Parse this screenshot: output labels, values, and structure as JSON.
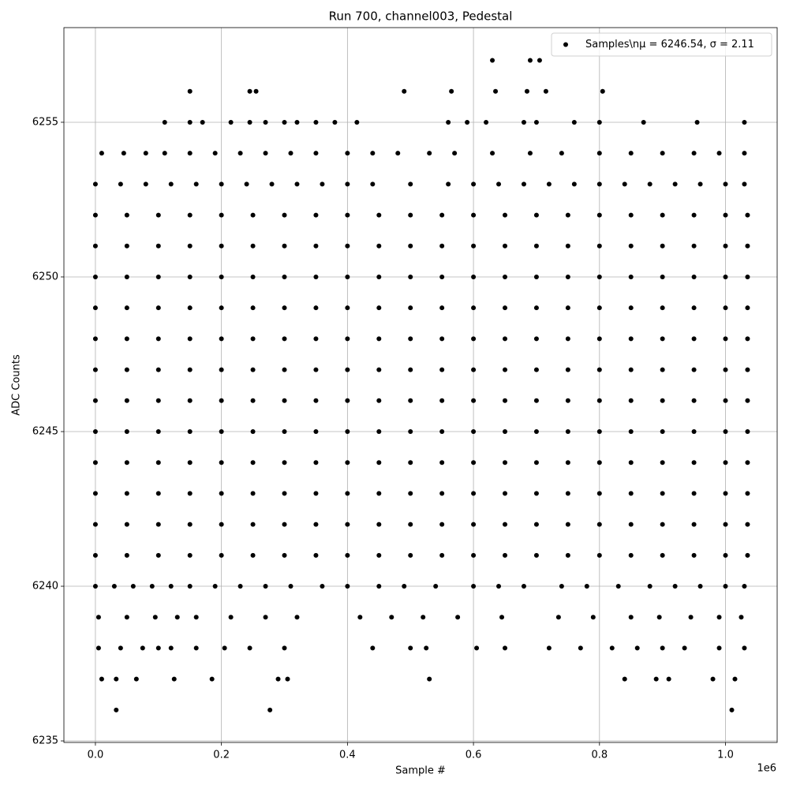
{
  "chart_data": {
    "type": "scatter",
    "title": "Run 700, channel003, Pedestal",
    "x_label": "Sample #",
    "y_label": "ADC Counts",
    "x_offset_label": "1e6",
    "legend_position": "upper right",
    "grid": true,
    "xlim": [
      -50000,
      1082000
    ],
    "ylim": [
      6234.95,
      6258.06
    ],
    "xticks": [
      {
        "value": 0,
        "label": "0.0"
      },
      {
        "value": 200000,
        "label": "0.2"
      },
      {
        "value": 400000,
        "label": "0.4"
      },
      {
        "value": 600000,
        "label": "0.6"
      },
      {
        "value": 800000,
        "label": "0.8"
      },
      {
        "value": 1000000,
        "label": "1.0"
      }
    ],
    "yticks": [
      6235,
      6240,
      6245,
      6250,
      6255
    ],
    "series": [
      {
        "name": "Samples\\nμ = 6246.54, σ = 2.11",
        "color": "#000000",
        "x": [
          0,
          50000,
          100000,
          150000,
          200000,
          250000,
          300000,
          350000,
          400000,
          450000,
          500000,
          550000,
          600000,
          650000,
          700000,
          750000,
          800000,
          850000,
          900000,
          950000,
          1000000,
          1035000,
          0,
          50000,
          100000,
          150000,
          200000,
          250000,
          300000,
          350000,
          400000,
          450000,
          500000,
          550000,
          600000,
          650000,
          700000,
          750000,
          800000,
          850000,
          900000,
          950000,
          1000000,
          1035000,
          0,
          50000,
          100000,
          150000,
          200000,
          250000,
          300000,
          350000,
          400000,
          450000,
          500000,
          550000,
          600000,
          650000,
          700000,
          750000,
          800000,
          850000,
          900000,
          950000,
          1000000,
          1035000,
          0,
          50000,
          100000,
          150000,
          200000,
          250000,
          300000,
          350000,
          400000,
          450000,
          500000,
          550000,
          600000,
          650000,
          700000,
          750000,
          800000,
          850000,
          900000,
          950000,
          1000000,
          1035000,
          0,
          50000,
          100000,
          150000,
          200000,
          250000,
          300000,
          350000,
          400000,
          450000,
          500000,
          550000,
          600000,
          650000,
          700000,
          750000,
          800000,
          850000,
          900000,
          950000,
          1000000,
          1035000,
          0,
          50000,
          100000,
          150000,
          200000,
          250000,
          300000,
          350000,
          400000,
          450000,
          500000,
          550000,
          600000,
          650000,
          700000,
          750000,
          800000,
          850000,
          900000,
          950000,
          1000000,
          1035000,
          0,
          50000,
          100000,
          150000,
          200000,
          250000,
          300000,
          350000,
          400000,
          450000,
          500000,
          550000,
          600000,
          650000,
          700000,
          750000,
          800000,
          850000,
          900000,
          950000,
          1000000,
          1035000,
          0,
          50000,
          100000,
          150000,
          200000,
          250000,
          300000,
          350000,
          400000,
          450000,
          500000,
          550000,
          600000,
          650000,
          700000,
          750000,
          800000,
          850000,
          900000,
          950000,
          1000000,
          1035000,
          0,
          50000,
          100000,
          150000,
          200000,
          250000,
          300000,
          350000,
          400000,
          450000,
          500000,
          550000,
          600000,
          650000,
          700000,
          750000,
          800000,
          850000,
          900000,
          950000,
          1000000,
          1035000,
          0,
          50000,
          100000,
          150000,
          200000,
          250000,
          300000,
          350000,
          400000,
          450000,
          500000,
          550000,
          600000,
          650000,
          700000,
          750000,
          800000,
          850000,
          900000,
          950000,
          1000000,
          1035000,
          0,
          50000,
          100000,
          150000,
          200000,
          250000,
          300000,
          350000,
          400000,
          450000,
          500000,
          550000,
          600000,
          650000,
          700000,
          750000,
          800000,
          850000,
          900000,
          950000,
          1000000,
          1035000,
          0,
          50000,
          100000,
          150000,
          200000,
          250000,
          300000,
          350000,
          400000,
          450000,
          500000,
          550000,
          600000,
          650000,
          700000,
          750000,
          800000,
          850000,
          900000,
          950000,
          1000000,
          1035000,
          33000,
          277000,
          1010000,
          10000,
          33000,
          65000,
          125000,
          185000,
          290000,
          305000,
          530000,
          840000,
          890000,
          910000,
          980000,
          1015000,
          5000,
          40000,
          75000,
          100000,
          120000,
          160000,
          205000,
          245000,
          300000,
          440000,
          500000,
          525000,
          605000,
          650000,
          720000,
          770000,
          820000,
          860000,
          900000,
          935000,
          990000,
          1030000,
          5000,
          50000,
          95000,
          130000,
          160000,
          215000,
          270000,
          320000,
          420000,
          470000,
          520000,
          575000,
          645000,
          735000,
          790000,
          850000,
          895000,
          945000,
          990000,
          1025000,
          0,
          30000,
          60000,
          90000,
          120000,
          150000,
          190000,
          230000,
          270000,
          310000,
          360000,
          400000,
          450000,
          490000,
          540000,
          600000,
          640000,
          680000,
          740000,
          780000,
          830000,
          880000,
          920000,
          960000,
          1000000,
          1030000,
          0,
          40000,
          80000,
          120000,
          160000,
          200000,
          240000,
          280000,
          320000,
          360000,
          400000,
          440000,
          500000,
          560000,
          600000,
          640000,
          680000,
          720000,
          760000,
          800000,
          840000,
          880000,
          920000,
          960000,
          1000000,
          1030000,
          10000,
          45000,
          80000,
          110000,
          150000,
          190000,
          230000,
          270000,
          310000,
          350000,
          400000,
          440000,
          480000,
          530000,
          570000,
          630000,
          690000,
          740000,
          800000,
          850000,
          900000,
          950000,
          990000,
          1030000,
          110000,
          150000,
          170000,
          215000,
          245000,
          270000,
          300000,
          320000,
          350000,
          380000,
          415000,
          560000,
          590000,
          620000,
          680000,
          700000,
          760000,
          800000,
          870000,
          955000,
          1030000,
          150000,
          245000,
          255000,
          490000,
          565000,
          635000,
          685000,
          715000,
          805000,
          630000,
          690000,
          705000
        ],
        "values": [
          6241,
          6241,
          6241,
          6241,
          6241,
          6241,
          6241,
          6241,
          6241,
          6241,
          6241,
          6241,
          6241,
          6241,
          6241,
          6241,
          6241,
          6241,
          6241,
          6241,
          6241,
          6241,
          6242,
          6242,
          6242,
          6242,
          6242,
          6242,
          6242,
          6242,
          6242,
          6242,
          6242,
          6242,
          6242,
          6242,
          6242,
          6242,
          6242,
          6242,
          6242,
          6242,
          6242,
          6242,
          6243,
          6243,
          6243,
          6243,
          6243,
          6243,
          6243,
          6243,
          6243,
          6243,
          6243,
          6243,
          6243,
          6243,
          6243,
          6243,
          6243,
          6243,
          6243,
          6243,
          6243,
          6243,
          6244,
          6244,
          6244,
          6244,
          6244,
          6244,
          6244,
          6244,
          6244,
          6244,
          6244,
          6244,
          6244,
          6244,
          6244,
          6244,
          6244,
          6244,
          6244,
          6244,
          6244,
          6244,
          6245,
          6245,
          6245,
          6245,
          6245,
          6245,
          6245,
          6245,
          6245,
          6245,
          6245,
          6245,
          6245,
          6245,
          6245,
          6245,
          6245,
          6245,
          6245,
          6245,
          6245,
          6245,
          6246,
          6246,
          6246,
          6246,
          6246,
          6246,
          6246,
          6246,
          6246,
          6246,
          6246,
          6246,
          6246,
          6246,
          6246,
          6246,
          6246,
          6246,
          6246,
          6246,
          6246,
          6246,
          6247,
          6247,
          6247,
          6247,
          6247,
          6247,
          6247,
          6247,
          6247,
          6247,
          6247,
          6247,
          6247,
          6247,
          6247,
          6247,
          6247,
          6247,
          6247,
          6247,
          6247,
          6247,
          6248,
          6248,
          6248,
          6248,
          6248,
          6248,
          6248,
          6248,
          6248,
          6248,
          6248,
          6248,
          6248,
          6248,
          6248,
          6248,
          6248,
          6248,
          6248,
          6248,
          6248,
          6248,
          6249,
          6249,
          6249,
          6249,
          6249,
          6249,
          6249,
          6249,
          6249,
          6249,
          6249,
          6249,
          6249,
          6249,
          6249,
          6249,
          6249,
          6249,
          6249,
          6249,
          6249,
          6249,
          6250,
          6250,
          6250,
          6250,
          6250,
          6250,
          6250,
          6250,
          6250,
          6250,
          6250,
          6250,
          6250,
          6250,
          6250,
          6250,
          6250,
          6250,
          6250,
          6250,
          6250,
          6250,
          6251,
          6251,
          6251,
          6251,
          6251,
          6251,
          6251,
          6251,
          6251,
          6251,
          6251,
          6251,
          6251,
          6251,
          6251,
          6251,
          6251,
          6251,
          6251,
          6251,
          6251,
          6251,
          6252,
          6252,
          6252,
          6252,
          6252,
          6252,
          6252,
          6252,
          6252,
          6252,
          6252,
          6252,
          6252,
          6252,
          6252,
          6252,
          6252,
          6252,
          6252,
          6252,
          6252,
          6252,
          6236,
          6236,
          6236,
          6237,
          6237,
          6237,
          6237,
          6237,
          6237,
          6237,
          6237,
          6237,
          6237,
          6237,
          6237,
          6237,
          6238,
          6238,
          6238,
          6238,
          6238,
          6238,
          6238,
          6238,
          6238,
          6238,
          6238,
          6238,
          6238,
          6238,
          6238,
          6238,
          6238,
          6238,
          6238,
          6238,
          6238,
          6238,
          6239,
          6239,
          6239,
          6239,
          6239,
          6239,
          6239,
          6239,
          6239,
          6239,
          6239,
          6239,
          6239,
          6239,
          6239,
          6239,
          6239,
          6239,
          6239,
          6239,
          6240,
          6240,
          6240,
          6240,
          6240,
          6240,
          6240,
          6240,
          6240,
          6240,
          6240,
          6240,
          6240,
          6240,
          6240,
          6240,
          6240,
          6240,
          6240,
          6240,
          6240,
          6240,
          6240,
          6240,
          6240,
          6240,
          6253,
          6253,
          6253,
          6253,
          6253,
          6253,
          6253,
          6253,
          6253,
          6253,
          6253,
          6253,
          6253,
          6253,
          6253,
          6253,
          6253,
          6253,
          6253,
          6253,
          6253,
          6253,
          6253,
          6253,
          6253,
          6253,
          6254,
          6254,
          6254,
          6254,
          6254,
          6254,
          6254,
          6254,
          6254,
          6254,
          6254,
          6254,
          6254,
          6254,
          6254,
          6254,
          6254,
          6254,
          6254,
          6254,
          6254,
          6254,
          6254,
          6254,
          6255,
          6255,
          6255,
          6255,
          6255,
          6255,
          6255,
          6255,
          6255,
          6255,
          6255,
          6255,
          6255,
          6255,
          6255,
          6255,
          6255,
          6255,
          6255,
          6255,
          6255,
          6256,
          6256,
          6256,
          6256,
          6256,
          6256,
          6256,
          6256,
          6256,
          6257,
          6257,
          6257
        ]
      }
    ]
  }
}
